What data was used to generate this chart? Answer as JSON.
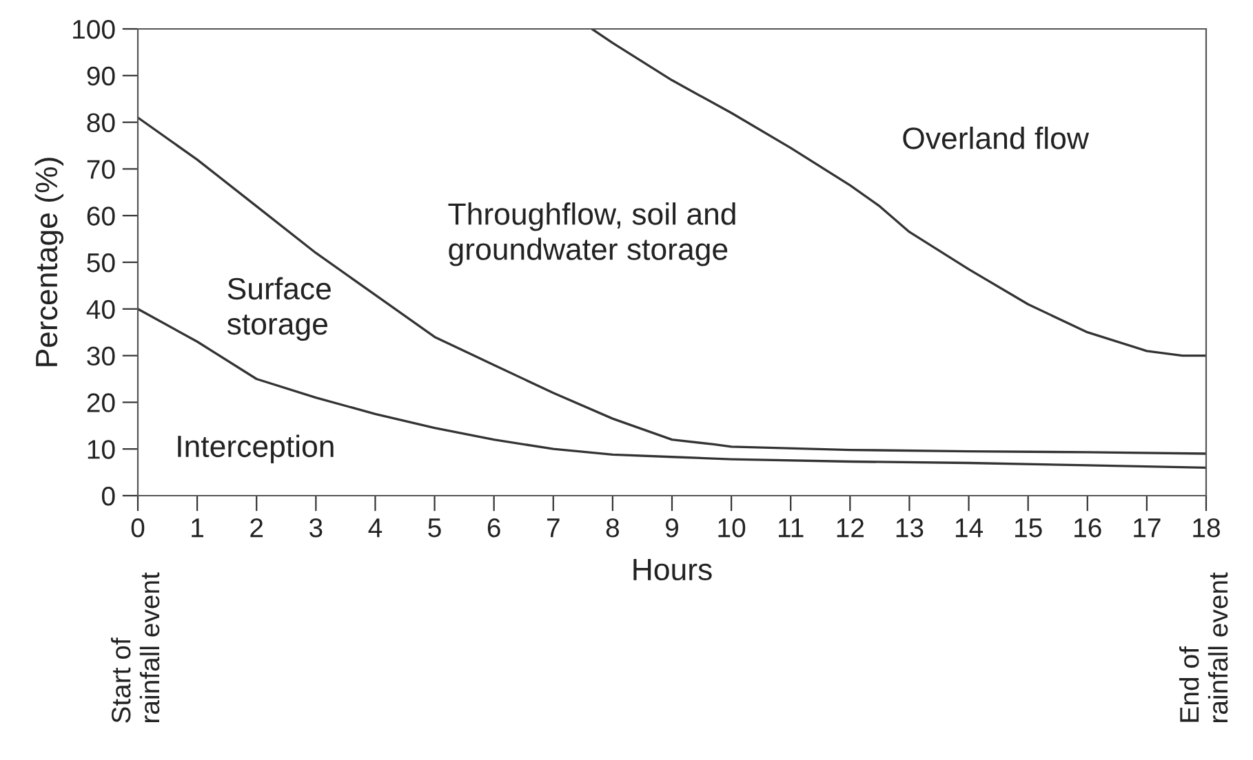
{
  "chart_data": {
    "type": "line",
    "xlabel": "Hours",
    "ylabel": "Percentage (%)",
    "xlim": [
      0,
      18
    ],
    "xticks": [
      0,
      1,
      2,
      3,
      4,
      5,
      6,
      7,
      8,
      9,
      10,
      11,
      12,
      13,
      14,
      15,
      16,
      17,
      18
    ],
    "ylim": [
      0,
      100
    ],
    "yticks": [
      0,
      10,
      20,
      30,
      40,
      50,
      60,
      70,
      80,
      90,
      100
    ],
    "grid": false,
    "marker": "none",
    "line_style": "solid",
    "series": [
      {
        "color": "#333333",
        "x": [
          0,
          1,
          2,
          3,
          4,
          5,
          6,
          7,
          8,
          9,
          10,
          12,
          14,
          16,
          18
        ],
        "values": [
          40,
          33,
          25,
          21,
          17.5,
          14.5,
          12,
          10,
          8.8,
          8.3,
          7.8,
          7.3,
          7,
          6.5,
          6
        ]
      },
      {
        "color": "#333333",
        "x": [
          0,
          1,
          2,
          3,
          4,
          5,
          6,
          7,
          8,
          9,
          9.7,
          10,
          12,
          14,
          16,
          18
        ],
        "values": [
          81,
          72,
          62,
          52,
          43,
          34,
          28,
          22,
          16.5,
          12,
          11,
          10.5,
          9.8,
          9.5,
          9.3,
          9
        ]
      },
      {
        "color": "#333333",
        "x": [
          7.65,
          8,
          9,
          10,
          11,
          12,
          12.5,
          13,
          14,
          15,
          16,
          17,
          17.6,
          18
        ],
        "values": [
          100,
          97,
          89,
          82,
          74.5,
          66.5,
          62,
          56.5,
          48.5,
          41,
          35,
          31,
          30,
          30
        ]
      }
    ],
    "annotations": [
      "Interception",
      "Surface\nstorage",
      "Throughflow, soil and\ngroundwater storage",
      "Overland flow",
      "Start of\nrainfall event",
      "End of\nrainfall event"
    ]
  }
}
